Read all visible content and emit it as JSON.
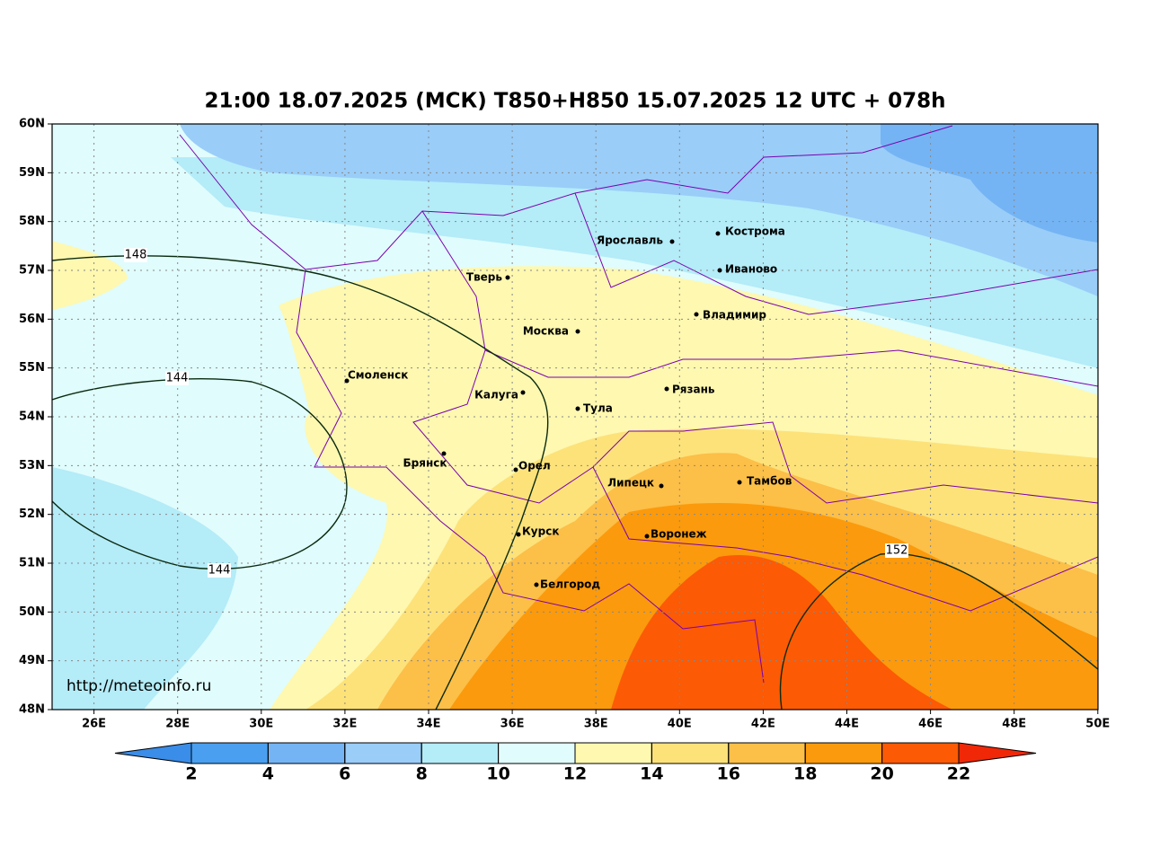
{
  "title": "21:00 18.07.2025 (МСК) T850+H850 15.07.2025 12 UTC + 078h",
  "map": {
    "lon_ticks": [
      "26E",
      "28E",
      "30E",
      "32E",
      "34E",
      "36E",
      "38E",
      "40E",
      "42E",
      "44E",
      "46E",
      "48E",
      "50E"
    ],
    "lat_ticks": [
      "60N",
      "59N",
      "58N",
      "57N",
      "56N",
      "55N",
      "54N",
      "53N",
      "52N",
      "51N",
      "50N",
      "49N",
      "48N"
    ],
    "cities": [
      "Ярославль",
      "Кострома",
      "Иваново",
      "Тверь",
      "Москва",
      "Владимир",
      "Смоленск",
      "Калуга",
      "Тула",
      "Рязань",
      "Брянск",
      "Орел",
      "Липецк",
      "Тамбов",
      "Курск",
      "Воронеж",
      "Белгород"
    ],
    "contour_labels": [
      "148",
      "144",
      "144",
      "152"
    ],
    "watermark": "http://meteoinfo.ru"
  },
  "colorbar": {
    "ticks": [
      2,
      4,
      6,
      8,
      10,
      12,
      14,
      16,
      18,
      20,
      22
    ],
    "colors": [
      "#3a8de8",
      "#4a9ff0",
      "#74b4f4",
      "#9acdf8",
      "#b4ecf8",
      "#e0fcfc",
      "#fef8b0",
      "#fde27a",
      "#fcbf48",
      "#fb9a0c",
      "#fc5a04",
      "#f02808"
    ]
  }
}
